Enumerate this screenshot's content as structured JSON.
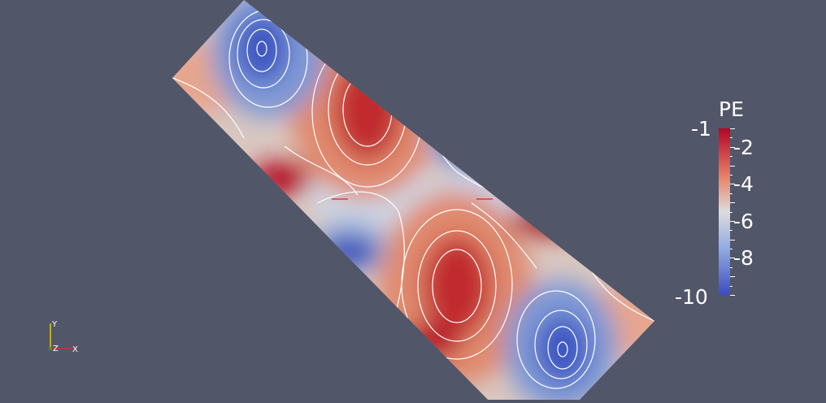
{
  "colors": {
    "background": "#525669",
    "cold": "#3b4cc0",
    "neutral": "#dddcdc",
    "hot": "#b40426"
  },
  "colorbar": {
    "title": "PE",
    "min_label": "-10",
    "max_label": "-1",
    "ticks": [
      {
        "value": -2,
        "label": "-2"
      },
      {
        "value": -4,
        "label": "-4"
      },
      {
        "value": -6,
        "label": "-6"
      },
      {
        "value": -8,
        "label": "-8"
      }
    ],
    "min": -10,
    "max": -1
  },
  "axes": {
    "x_label": "X",
    "y_label": "Y",
    "z_label": "Z"
  }
}
